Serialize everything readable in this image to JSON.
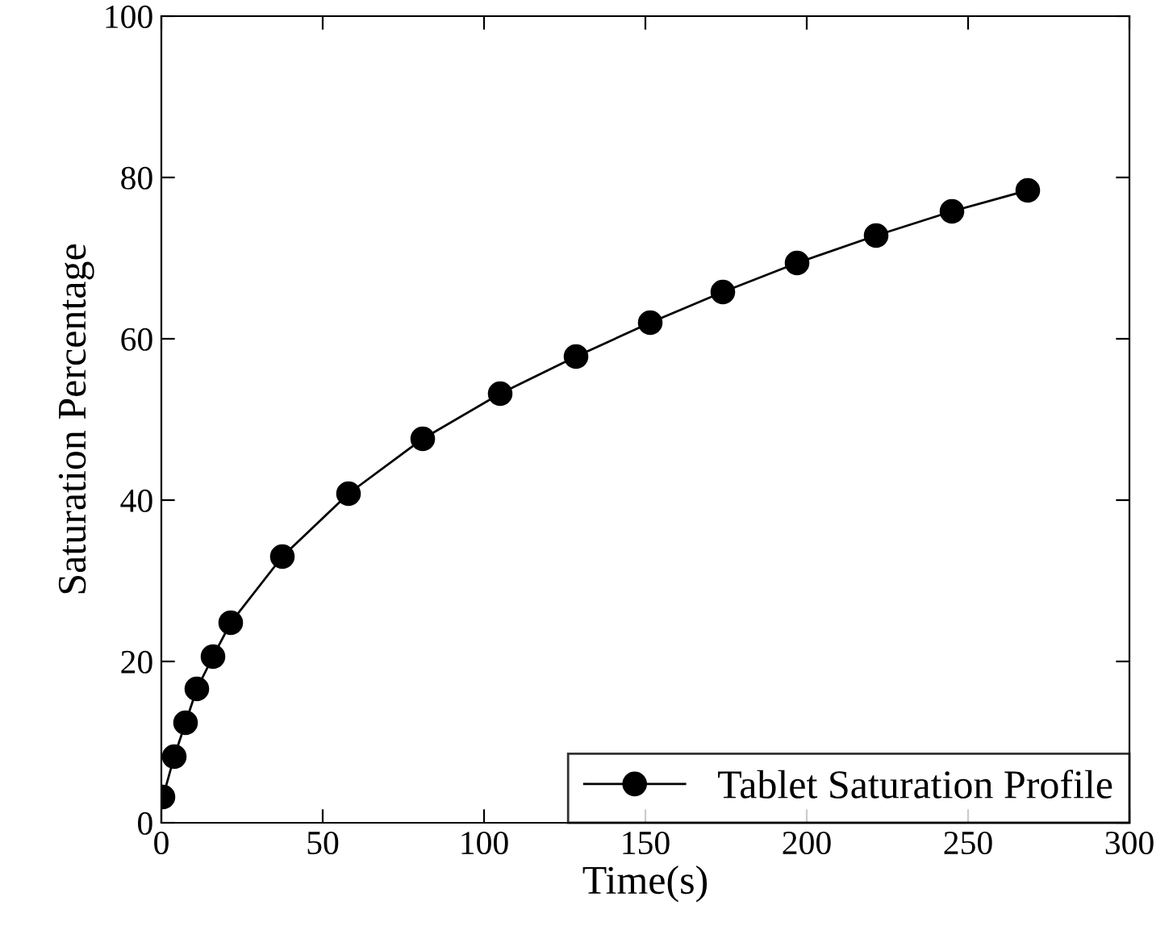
{
  "chart_data": {
    "type": "line",
    "xlabel": "Time(s)",
    "ylabel": "Saturation Percentage",
    "x": [
      0.5,
      4,
      7.5,
      11,
      16,
      21.5,
      37.5,
      58,
      81,
      105,
      128.5,
      151.5,
      174,
      197,
      221.5,
      245,
      268.5
    ],
    "series": [
      {
        "name": "Tablet Saturation Profile",
        "color": "#000000",
        "values": [
          3.2,
          8.2,
          12.4,
          16.6,
          20.6,
          24.8,
          33,
          40.8,
          47.6,
          53.2,
          57.8,
          62,
          65.8,
          69.4,
          72.8,
          75.8,
          78.4
        ]
      }
    ],
    "xlim": [
      0,
      300
    ],
    "xticks": [
      0,
      50,
      100,
      150,
      200,
      250,
      300
    ],
    "ylim": [
      0,
      100
    ],
    "yticks": [
      0,
      20,
      40,
      60,
      80,
      100
    ],
    "marker": "circle",
    "line_style": "solid",
    "legend": "bottom right",
    "grid": false
  }
}
